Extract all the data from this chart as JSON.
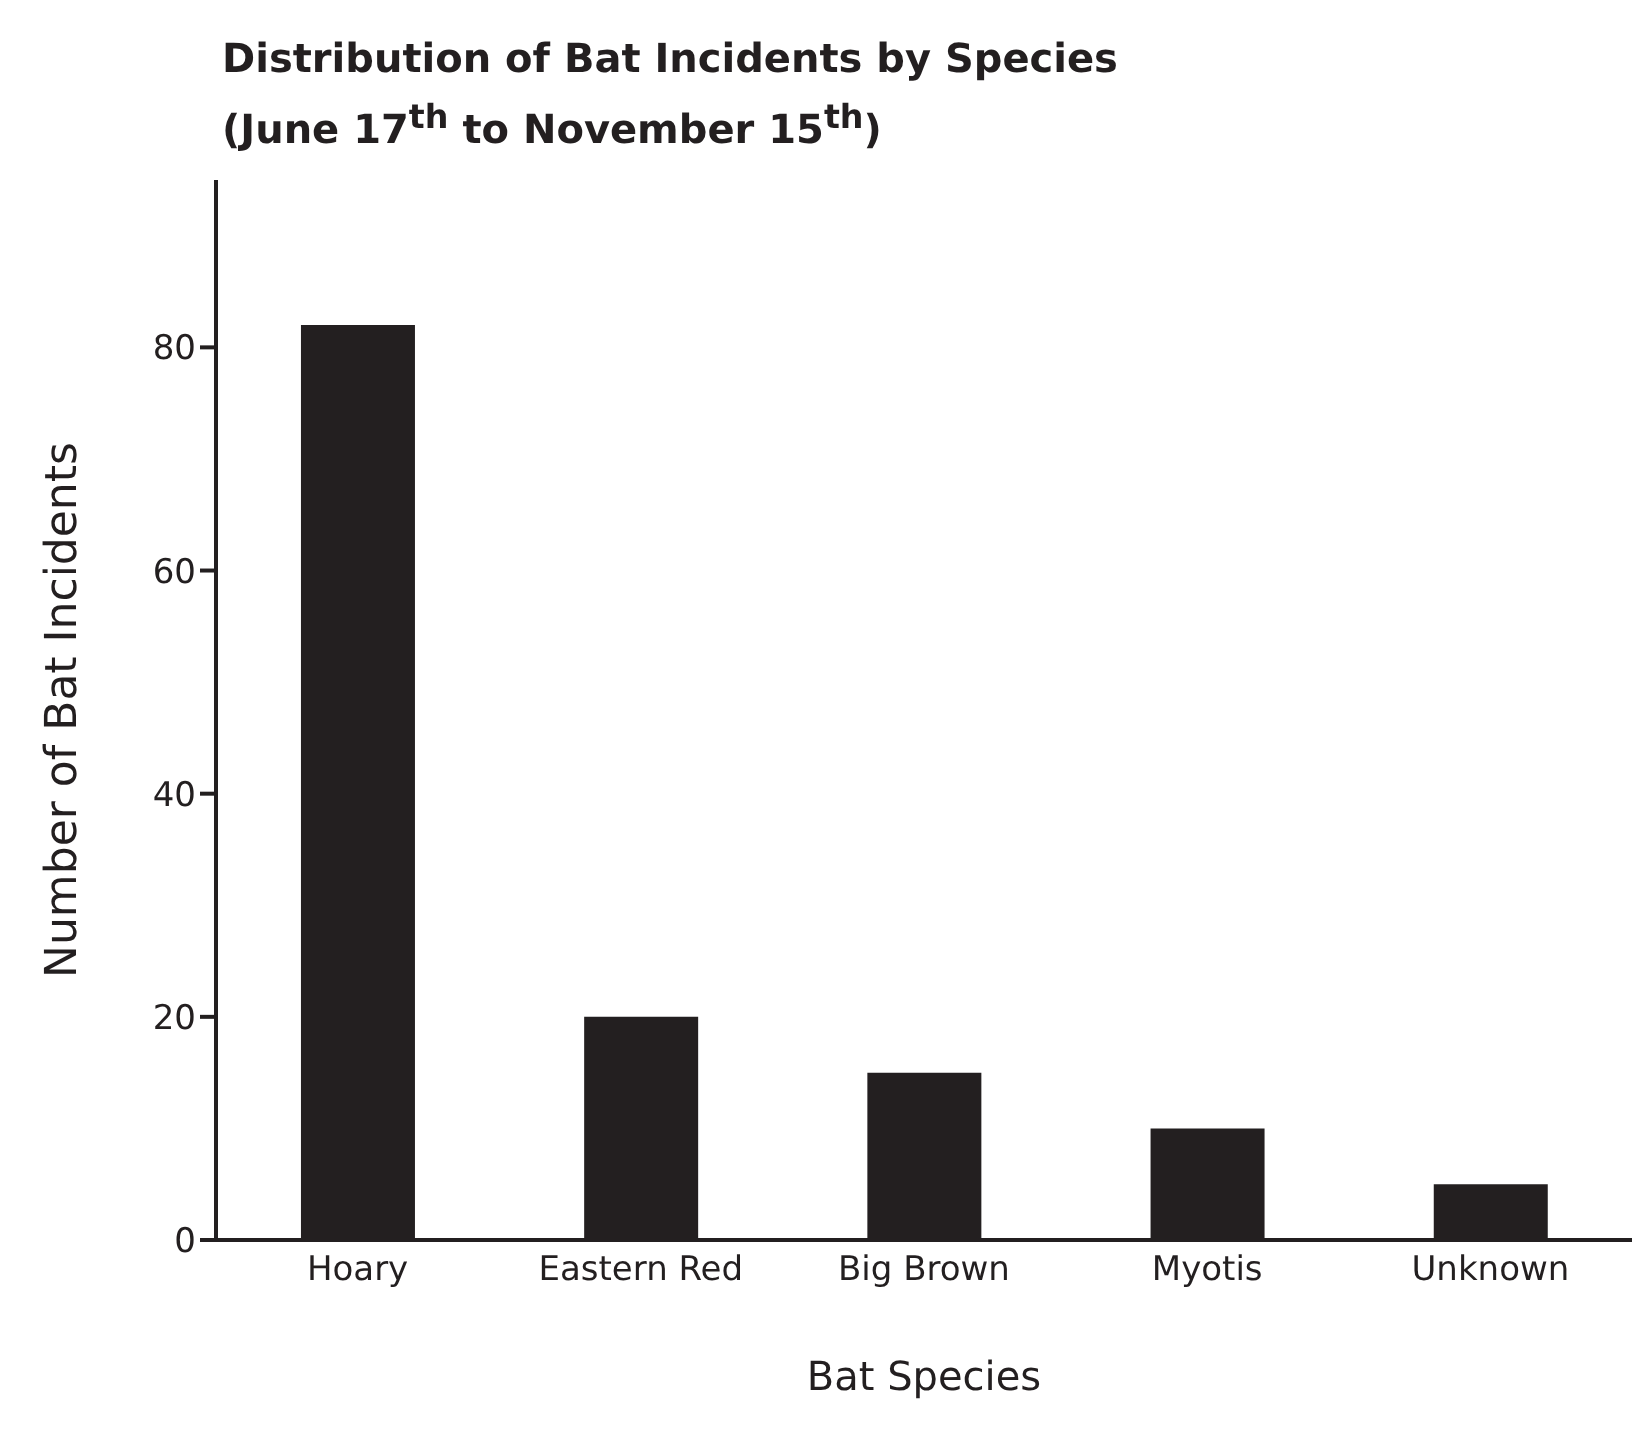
{
  "chart_data": {
    "type": "bar",
    "title": "Distribution of Bat Incidents by Species",
    "subtitle": "(June 17$^{th}$ to November 15$^{th}$)",
    "xlabel": "Bat Species",
    "ylabel": "Number of Bat Incidents",
    "categories": [
      "Hoary",
      "Eastern Red",
      "Big Brown",
      "Myotis",
      "Unknown"
    ],
    "values": [
      82,
      20,
      15,
      10,
      5
    ],
    "color": "#231f20",
    "ylim": [
      0,
      95
    ],
    "yticks": [
      0,
      20,
      40,
      60,
      80
    ],
    "grid": false,
    "legend": false
  }
}
